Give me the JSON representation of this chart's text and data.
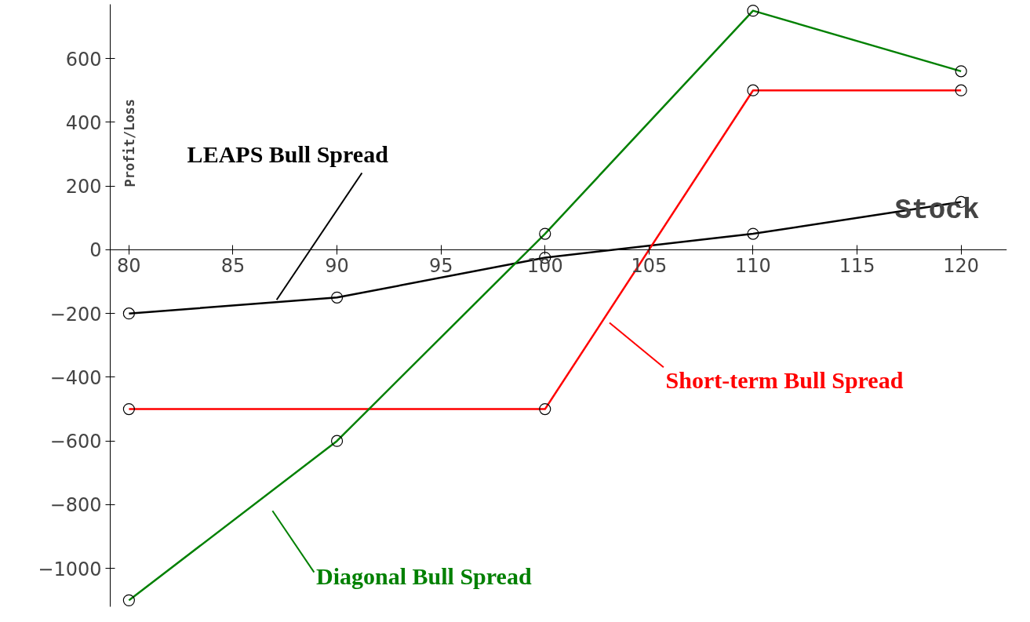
{
  "chart_data": {
    "type": "line",
    "xlabel": "Stock",
    "ylabel": "Profit/Loss",
    "x": [
      80,
      90,
      100,
      110,
      120
    ],
    "series": [
      {
        "name": "LEAPS Bull Spread",
        "color": "#000000",
        "values": [
          -200,
          -150,
          -25,
          50,
          150
        ]
      },
      {
        "name": "Short-term Bull Spread",
        "color": "#ff0000",
        "values": [
          -500,
          null,
          -500,
          500,
          500
        ]
      },
      {
        "name": "Diagonal Bull Spread",
        "color": "#008000",
        "values": [
          -1100,
          -600,
          50,
          750,
          560
        ]
      }
    ],
    "xlim": [
      79.1,
      122.2
    ],
    "ylim": [
      -1120,
      770
    ],
    "xticks": [
      80,
      85,
      90,
      95,
      100,
      105,
      110,
      115,
      120
    ],
    "yticks": [
      -1000,
      -800,
      -600,
      -400,
      -200,
      0,
      200,
      400,
      600
    ],
    "grid": false,
    "marker": "circle",
    "line_style": "solid"
  }
}
